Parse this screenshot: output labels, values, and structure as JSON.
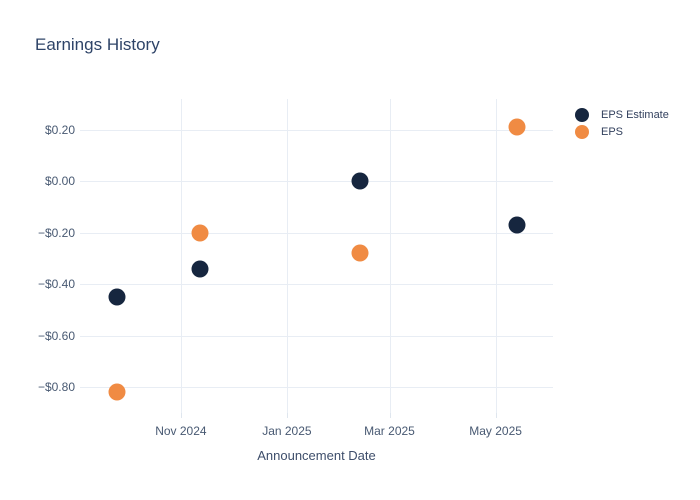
{
  "chart_data": {
    "type": "scatter",
    "title": "Earnings History",
    "xlabel": "Announcement Date",
    "ylabel": "",
    "x_dates": [
      "2024-09-25",
      "2024-11-12",
      "2025-02-12",
      "2025-05-13"
    ],
    "series": [
      {
        "name": "EPS Estimate",
        "color": "#16263f",
        "values": [
          -0.45,
          -0.34,
          0.0,
          -0.17
        ]
      },
      {
        "name": "EPS",
        "color": "#f08b43",
        "values": [
          -0.82,
          -0.2,
          -0.28,
          0.21
        ]
      }
    ],
    "x_ticks": [
      {
        "label": "Nov 2024",
        "date": "2024-11-01"
      },
      {
        "label": "Jan 2025",
        "date": "2025-01-01"
      },
      {
        "label": "Mar 2025",
        "date": "2025-03-01"
      },
      {
        "label": "May 2025",
        "date": "2025-05-01"
      }
    ],
    "y_ticks": [
      {
        "label": "$0.20",
        "value": 0.2
      },
      {
        "label": "$0.00",
        "value": 0.0
      },
      {
        "label": "−$0.20",
        "value": -0.2
      },
      {
        "label": "−$0.40",
        "value": -0.4
      },
      {
        "label": "−$0.60",
        "value": -0.6
      },
      {
        "label": "−$0.80",
        "value": -0.8
      }
    ],
    "x_range": [
      "2024-09-04",
      "2025-06-03"
    ],
    "y_range": [
      -0.9,
      0.32
    ],
    "grid": true,
    "legend_position": "top-right",
    "colors": {
      "background": "#ffffff",
      "grid": "#e8edf4",
      "title_text": "#2f4468",
      "tick_text": "#485972",
      "axis_title_text": "#3e4e6b",
      "legend_text": "#33415e"
    }
  }
}
